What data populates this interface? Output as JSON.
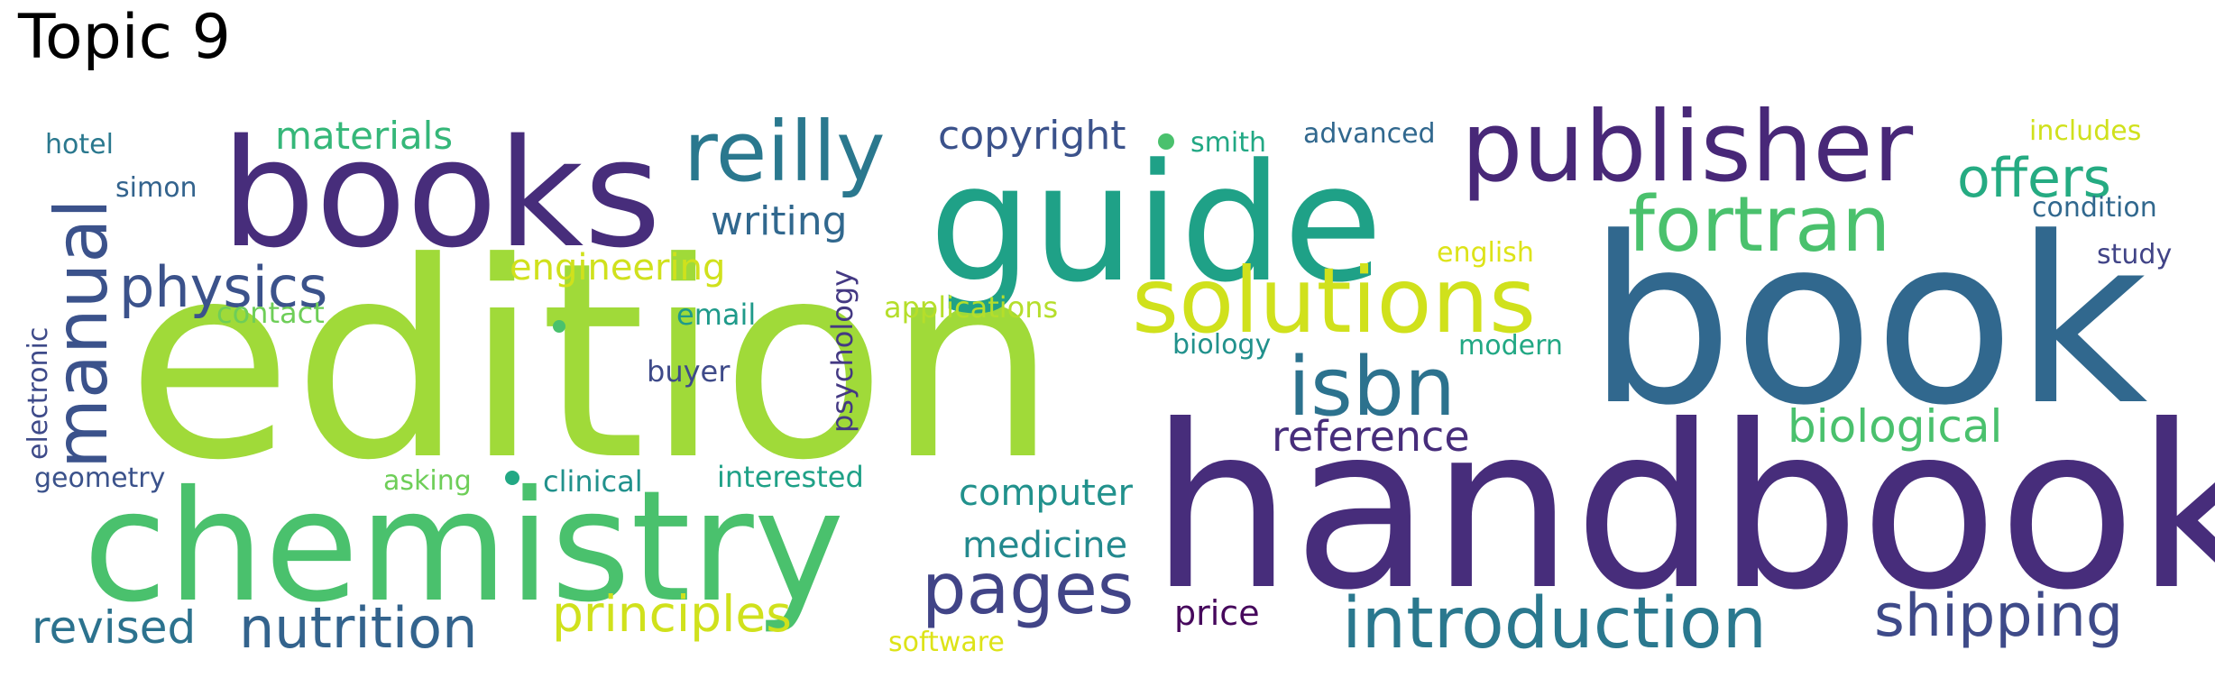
{
  "title": "Topic 9",
  "words": [
    {
      "text": "edition",
      "color": "#a0da39"
    },
    {
      "text": "handbook",
      "color": "#472d7b"
    },
    {
      "text": "book",
      "color": "#31688e"
    },
    {
      "text": "books",
      "color": "#472d7b"
    },
    {
      "text": "guide",
      "color": "#1fa187"
    },
    {
      "text": "chemistry",
      "color": "#4ac16d"
    },
    {
      "text": "publisher",
      "color": "#482878"
    },
    {
      "text": "solutions",
      "color": "#d0e11c"
    },
    {
      "text": "reilly",
      "color": "#2a788e"
    },
    {
      "text": "manual",
      "color": "#3b528b"
    },
    {
      "text": "fortran",
      "color": "#4ac16d"
    },
    {
      "text": "introduction",
      "color": "#2a788e"
    },
    {
      "text": "isbn",
      "color": "#2c728e"
    },
    {
      "text": "pages",
      "color": "#414487"
    },
    {
      "text": "shipping",
      "color": "#3e4a89"
    },
    {
      "text": "nutrition",
      "color": "#33638d"
    },
    {
      "text": "physics",
      "color": "#3b528b"
    },
    {
      "text": "offers",
      "color": "#25ab82"
    },
    {
      "text": "principles",
      "color": "#d0e11c"
    },
    {
      "text": "revised",
      "color": "#2c728e"
    },
    {
      "text": "biological",
      "color": "#4ac16d"
    },
    {
      "text": "reference",
      "color": "#472d7b"
    },
    {
      "text": "copyright",
      "color": "#3b528b"
    },
    {
      "text": "writing",
      "color": "#31688e"
    },
    {
      "text": "materials",
      "color": "#35b779"
    },
    {
      "text": "computer",
      "color": "#21918c"
    },
    {
      "text": "medicine",
      "color": "#23898e"
    },
    {
      "text": "engineering",
      "color": "#d0e11c"
    },
    {
      "text": "price",
      "color": "#46085c"
    },
    {
      "text": "applications",
      "color": "#b5de2b"
    },
    {
      "text": "interested",
      "color": "#1fa187"
    },
    {
      "text": "clinical",
      "color": "#21918c"
    },
    {
      "text": "email",
      "color": "#1f9a8a"
    },
    {
      "text": "buyer",
      "color": "#3e4a89"
    },
    {
      "text": "contact",
      "color": "#6ece58"
    },
    {
      "text": "psychology",
      "color": "#443983"
    },
    {
      "text": "asking",
      "color": "#6ece58"
    },
    {
      "text": "geometry",
      "color": "#3b528b"
    },
    {
      "text": "electronic",
      "color": "#3e4a89"
    },
    {
      "text": "smith",
      "color": "#22a884"
    },
    {
      "text": "advanced",
      "color": "#31688e"
    },
    {
      "text": "includes",
      "color": "#d0e11c"
    },
    {
      "text": "condition",
      "color": "#31688e"
    },
    {
      "text": "study",
      "color": "#414487"
    },
    {
      "text": "english",
      "color": "#dde318"
    },
    {
      "text": "modern",
      "color": "#22a884"
    },
    {
      "text": "biology",
      "color": "#21918c"
    },
    {
      "text": "software",
      "color": "#dde318"
    },
    {
      "text": "hotel",
      "color": "#2a788e"
    },
    {
      "text": "simon",
      "color": "#33638d"
    }
  ],
  "dots": [
    {
      "color": "#4ac16d"
    },
    {
      "color": "#22a884"
    },
    {
      "color": "#4ac16d"
    }
  ]
}
